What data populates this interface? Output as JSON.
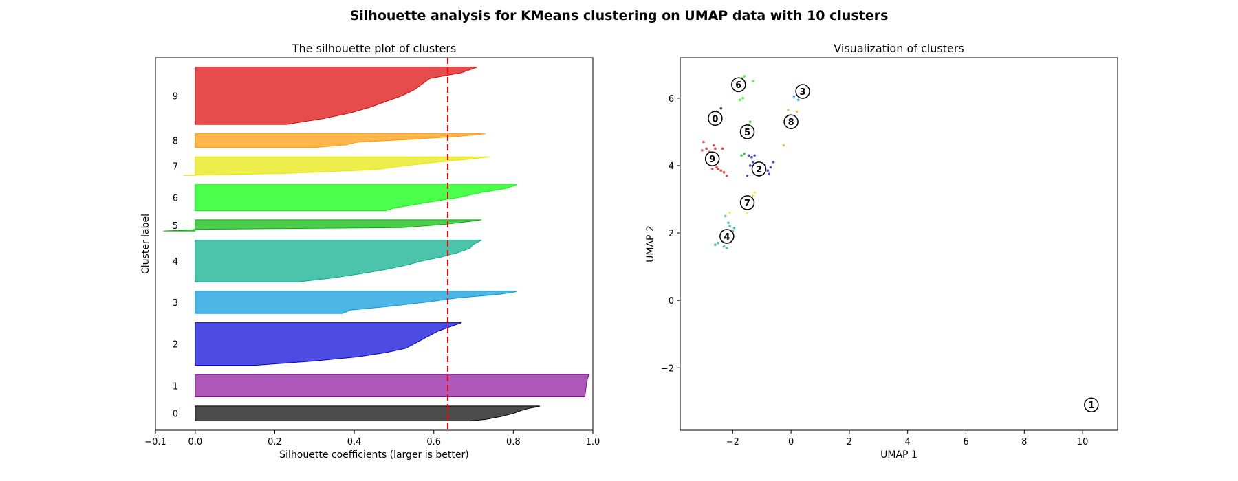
{
  "figure": {
    "title": "Silhouette analysis for KMeans clustering on UMAP data with 10 clusters"
  },
  "chart_data": [
    {
      "type": "area",
      "subtype": "silhouette",
      "title": "The silhouette plot of clusters",
      "xlabel": "Silhouette coefficients (larger is better)",
      "ylabel": "Cluster label",
      "xlim": [
        -0.1,
        1.0
      ],
      "xticks": [
        -0.1,
        0.0,
        0.2,
        0.4,
        0.6,
        0.8,
        1.0
      ],
      "xtick_labels": [
        "−0.1",
        "0.0",
        "0.2",
        "0.4",
        "0.6",
        "0.8",
        "1.0"
      ],
      "yticks": "none",
      "average_silhouette": 0.635,
      "average_line_color": "#ff0000",
      "clusters": [
        {
          "label": "0",
          "color": "#000000",
          "size": 16,
          "profile": [
            [
              0.0,
              0.69
            ],
            [
              0.1,
              0.73
            ],
            [
              0.3,
              0.77
            ],
            [
              0.5,
              0.8
            ],
            [
              0.7,
              0.82
            ],
            [
              0.85,
              0.84
            ],
            [
              0.95,
              0.86
            ],
            [
              1.0,
              0.867
            ]
          ]
        },
        {
          "label": "1",
          "color": "#8a0f9a",
          "size": 24,
          "profile": [
            [
              0.0,
              0.98
            ],
            [
              0.3,
              0.982
            ],
            [
              0.7,
              0.985
            ],
            [
              1.0,
              0.99
            ]
          ]
        },
        {
          "label": "2",
          "color": "#0000d5",
          "size": 46,
          "profile": [
            [
              0.0,
              0.15
            ],
            [
              0.1,
              0.3
            ],
            [
              0.2,
              0.41
            ],
            [
              0.3,
              0.48
            ],
            [
              0.4,
              0.53
            ],
            [
              0.5,
              0.55
            ],
            [
              0.6,
              0.57
            ],
            [
              0.7,
              0.59
            ],
            [
              0.8,
              0.61
            ],
            [
              0.9,
              0.64
            ],
            [
              1.0,
              0.67
            ]
          ]
        },
        {
          "label": "3",
          "color": "#0099dd",
          "size": 24,
          "profile": [
            [
              0.0,
              0.37
            ],
            [
              0.15,
              0.39
            ],
            [
              0.3,
              0.48
            ],
            [
              0.5,
              0.58
            ],
            [
              0.7,
              0.66
            ],
            [
              0.85,
              0.76
            ],
            [
              0.95,
              0.8
            ],
            [
              1.0,
              0.81
            ]
          ]
        },
        {
          "label": "4",
          "color": "#00aa88",
          "size": 45,
          "profile": [
            [
              0.0,
              0.26
            ],
            [
              0.1,
              0.35
            ],
            [
              0.2,
              0.42
            ],
            [
              0.3,
              0.48
            ],
            [
              0.4,
              0.53
            ],
            [
              0.5,
              0.57
            ],
            [
              0.6,
              0.62
            ],
            [
              0.7,
              0.66
            ],
            [
              0.8,
              0.69
            ],
            [
              0.9,
              0.7
            ],
            [
              1.0,
              0.72
            ]
          ]
        },
        {
          "label": "5",
          "color": "#00b800",
          "size": 12,
          "profile": [
            [
              0.0,
              -0.08
            ],
            [
              0.1,
              -0.01
            ],
            [
              0.15,
              0.0
            ],
            [
              0.3,
              0.52
            ],
            [
              0.6,
              0.63
            ],
            [
              0.85,
              0.69
            ],
            [
              1.0,
              0.72
            ]
          ]
        },
        {
          "label": "6",
          "color": "#00ff00",
          "size": 28,
          "profile": [
            [
              0.0,
              0.48
            ],
            [
              0.1,
              0.5
            ],
            [
              0.3,
              0.58
            ],
            [
              0.5,
              0.66
            ],
            [
              0.7,
              0.72
            ],
            [
              0.85,
              0.78
            ],
            [
              1.0,
              0.81
            ]
          ]
        },
        {
          "label": "7",
          "color": "#e6e600",
          "size": 20,
          "profile": [
            [
              0.0,
              -0.03
            ],
            [
              0.1,
              0.22
            ],
            [
              0.3,
              0.45
            ],
            [
              0.5,
              0.52
            ],
            [
              0.7,
              0.6
            ],
            [
              0.85,
              0.68
            ],
            [
              1.0,
              0.74
            ]
          ]
        },
        {
          "label": "8",
          "color": "#ff9900",
          "size": 15,
          "profile": [
            [
              0.0,
              0.3
            ],
            [
              0.2,
              0.38
            ],
            [
              0.4,
              0.41
            ],
            [
              0.6,
              0.55
            ],
            [
              0.8,
              0.66
            ],
            [
              1.0,
              0.73
            ]
          ]
        },
        {
          "label": "9",
          "color": "#dd0000",
          "size": 62,
          "profile": [
            [
              0.0,
              0.23
            ],
            [
              0.1,
              0.32
            ],
            [
              0.2,
              0.39
            ],
            [
              0.3,
              0.44
            ],
            [
              0.4,
              0.48
            ],
            [
              0.5,
              0.52
            ],
            [
              0.6,
              0.55
            ],
            [
              0.7,
              0.57
            ],
            [
              0.8,
              0.59
            ],
            [
              0.9,
              0.67
            ],
            [
              1.0,
              0.71
            ]
          ]
        }
      ]
    },
    {
      "type": "scatter",
      "title": "Visualization of clusters",
      "xlabel": "UMAP 1",
      "ylabel": "UMAP 2",
      "xlim": [
        -3.8,
        11.2
      ],
      "ylim": [
        -3.85,
        7.2
      ],
      "xticks": [
        -2,
        0,
        2,
        4,
        6,
        8,
        10
      ],
      "xtick_labels": [
        "−2",
        "0",
        "2",
        "4",
        "6",
        "8",
        "10"
      ],
      "yticks": [
        -2,
        0,
        2,
        4,
        6
      ],
      "ytick_labels": [
        "−2",
        "0",
        "2",
        "4",
        "6"
      ],
      "clusters": [
        {
          "label": "0",
          "color": "#000000",
          "center": [
            -2.6,
            5.4
          ],
          "points": [
            [
              -2.4,
              5.7
            ],
            [
              -2.55,
              5.6
            ],
            [
              -2.45,
              5.5
            ]
          ]
        },
        {
          "label": "1",
          "color": "#8a0f9a",
          "center": [
            10.3,
            -3.1
          ],
          "points": [
            [
              10.15,
              -3.05
            ],
            [
              10.2,
              -3.25
            ],
            [
              10.25,
              -3.15
            ],
            [
              10.1,
              -3.0
            ]
          ]
        },
        {
          "label": "2",
          "color": "#0000d5",
          "center": [
            -1.1,
            3.9
          ],
          "points": [
            [
              -1.4,
              4.0
            ],
            [
              -1.3,
              4.1
            ],
            [
              -1.2,
              3.8
            ],
            [
              -1.0,
              3.9
            ],
            [
              -0.9,
              4.0
            ],
            [
              -0.8,
              3.85
            ],
            [
              -0.7,
              3.95
            ],
            [
              -1.5,
              3.7
            ],
            [
              -1.35,
              4.25
            ],
            [
              -0.6,
              4.1
            ],
            [
              -1.1,
              3.7
            ],
            [
              -1.25,
              4.3
            ],
            [
              -0.75,
              3.75
            ],
            [
              -1.45,
              4.3
            ]
          ]
        },
        {
          "label": "3",
          "color": "#0099dd",
          "center": [
            0.4,
            6.2
          ],
          "points": [
            [
              0.2,
              6.3
            ],
            [
              0.5,
              6.35
            ],
            [
              0.3,
              6.1
            ],
            [
              0.1,
              6.05
            ],
            [
              0.6,
              6.25
            ],
            [
              0.25,
              5.95
            ]
          ]
        },
        {
          "label": "4",
          "color": "#00aa88",
          "center": [
            -2.2,
            1.9
          ],
          "points": [
            [
              -2.1,
              2.2
            ],
            [
              -2.3,
              1.6
            ],
            [
              -2.0,
              2.05
            ],
            [
              -1.95,
              2.15
            ],
            [
              -2.25,
              2.5
            ],
            [
              -2.5,
              1.7
            ],
            [
              -2.6,
              1.65
            ],
            [
              -2.2,
              1.55
            ],
            [
              -2.35,
              2.0
            ],
            [
              -2.05,
              1.9
            ],
            [
              -2.4,
              1.9
            ],
            [
              -2.15,
              2.3
            ]
          ]
        },
        {
          "label": "5",
          "color": "#00b800",
          "center": [
            -1.5,
            5.0
          ],
          "points": [
            [
              -1.4,
              5.3
            ],
            [
              -1.6,
              4.35
            ],
            [
              -1.7,
              4.3
            ],
            [
              -1.45,
              5.2
            ]
          ]
        },
        {
          "label": "6",
          "color": "#00ff00",
          "center": [
            -1.8,
            6.4
          ],
          "points": [
            [
              -1.7,
              6.6
            ],
            [
              -1.6,
              6.65
            ],
            [
              -1.65,
              6.0
            ],
            [
              -1.75,
              5.95
            ],
            [
              -1.3,
              6.5
            ],
            [
              -1.85,
              6.2
            ]
          ]
        },
        {
          "label": "7",
          "color": "#e6e600",
          "center": [
            -1.5,
            2.9
          ],
          "points": [
            [
              -1.3,
              3.1
            ],
            [
              -1.5,
              2.6
            ],
            [
              -1.25,
              3.2
            ],
            [
              -2.1,
              2.6
            ]
          ]
        },
        {
          "label": "8",
          "color": "#ff9900",
          "center": [
            0.0,
            5.3
          ],
          "points": [
            [
              -0.1,
              5.65
            ],
            [
              0.2,
              5.6
            ],
            [
              -0.25,
              4.6
            ]
          ]
        },
        {
          "label": "9",
          "color": "#dd0000",
          "center": [
            -2.7,
            4.2
          ],
          "points": [
            [
              -3.0,
              4.7
            ],
            [
              -2.9,
              4.5
            ],
            [
              -2.8,
              4.4
            ],
            [
              -3.05,
              4.45
            ],
            [
              -2.6,
              4.5
            ],
            [
              -2.5,
              3.9
            ],
            [
              -2.4,
              3.85
            ],
            [
              -2.3,
              3.8
            ],
            [
              -2.2,
              3.7
            ],
            [
              -2.7,
              3.9
            ],
            [
              -2.35,
              4.5
            ],
            [
              -2.55,
              3.95
            ],
            [
              -2.8,
              4.05
            ],
            [
              -2.65,
              4.6
            ]
          ]
        }
      ]
    }
  ]
}
